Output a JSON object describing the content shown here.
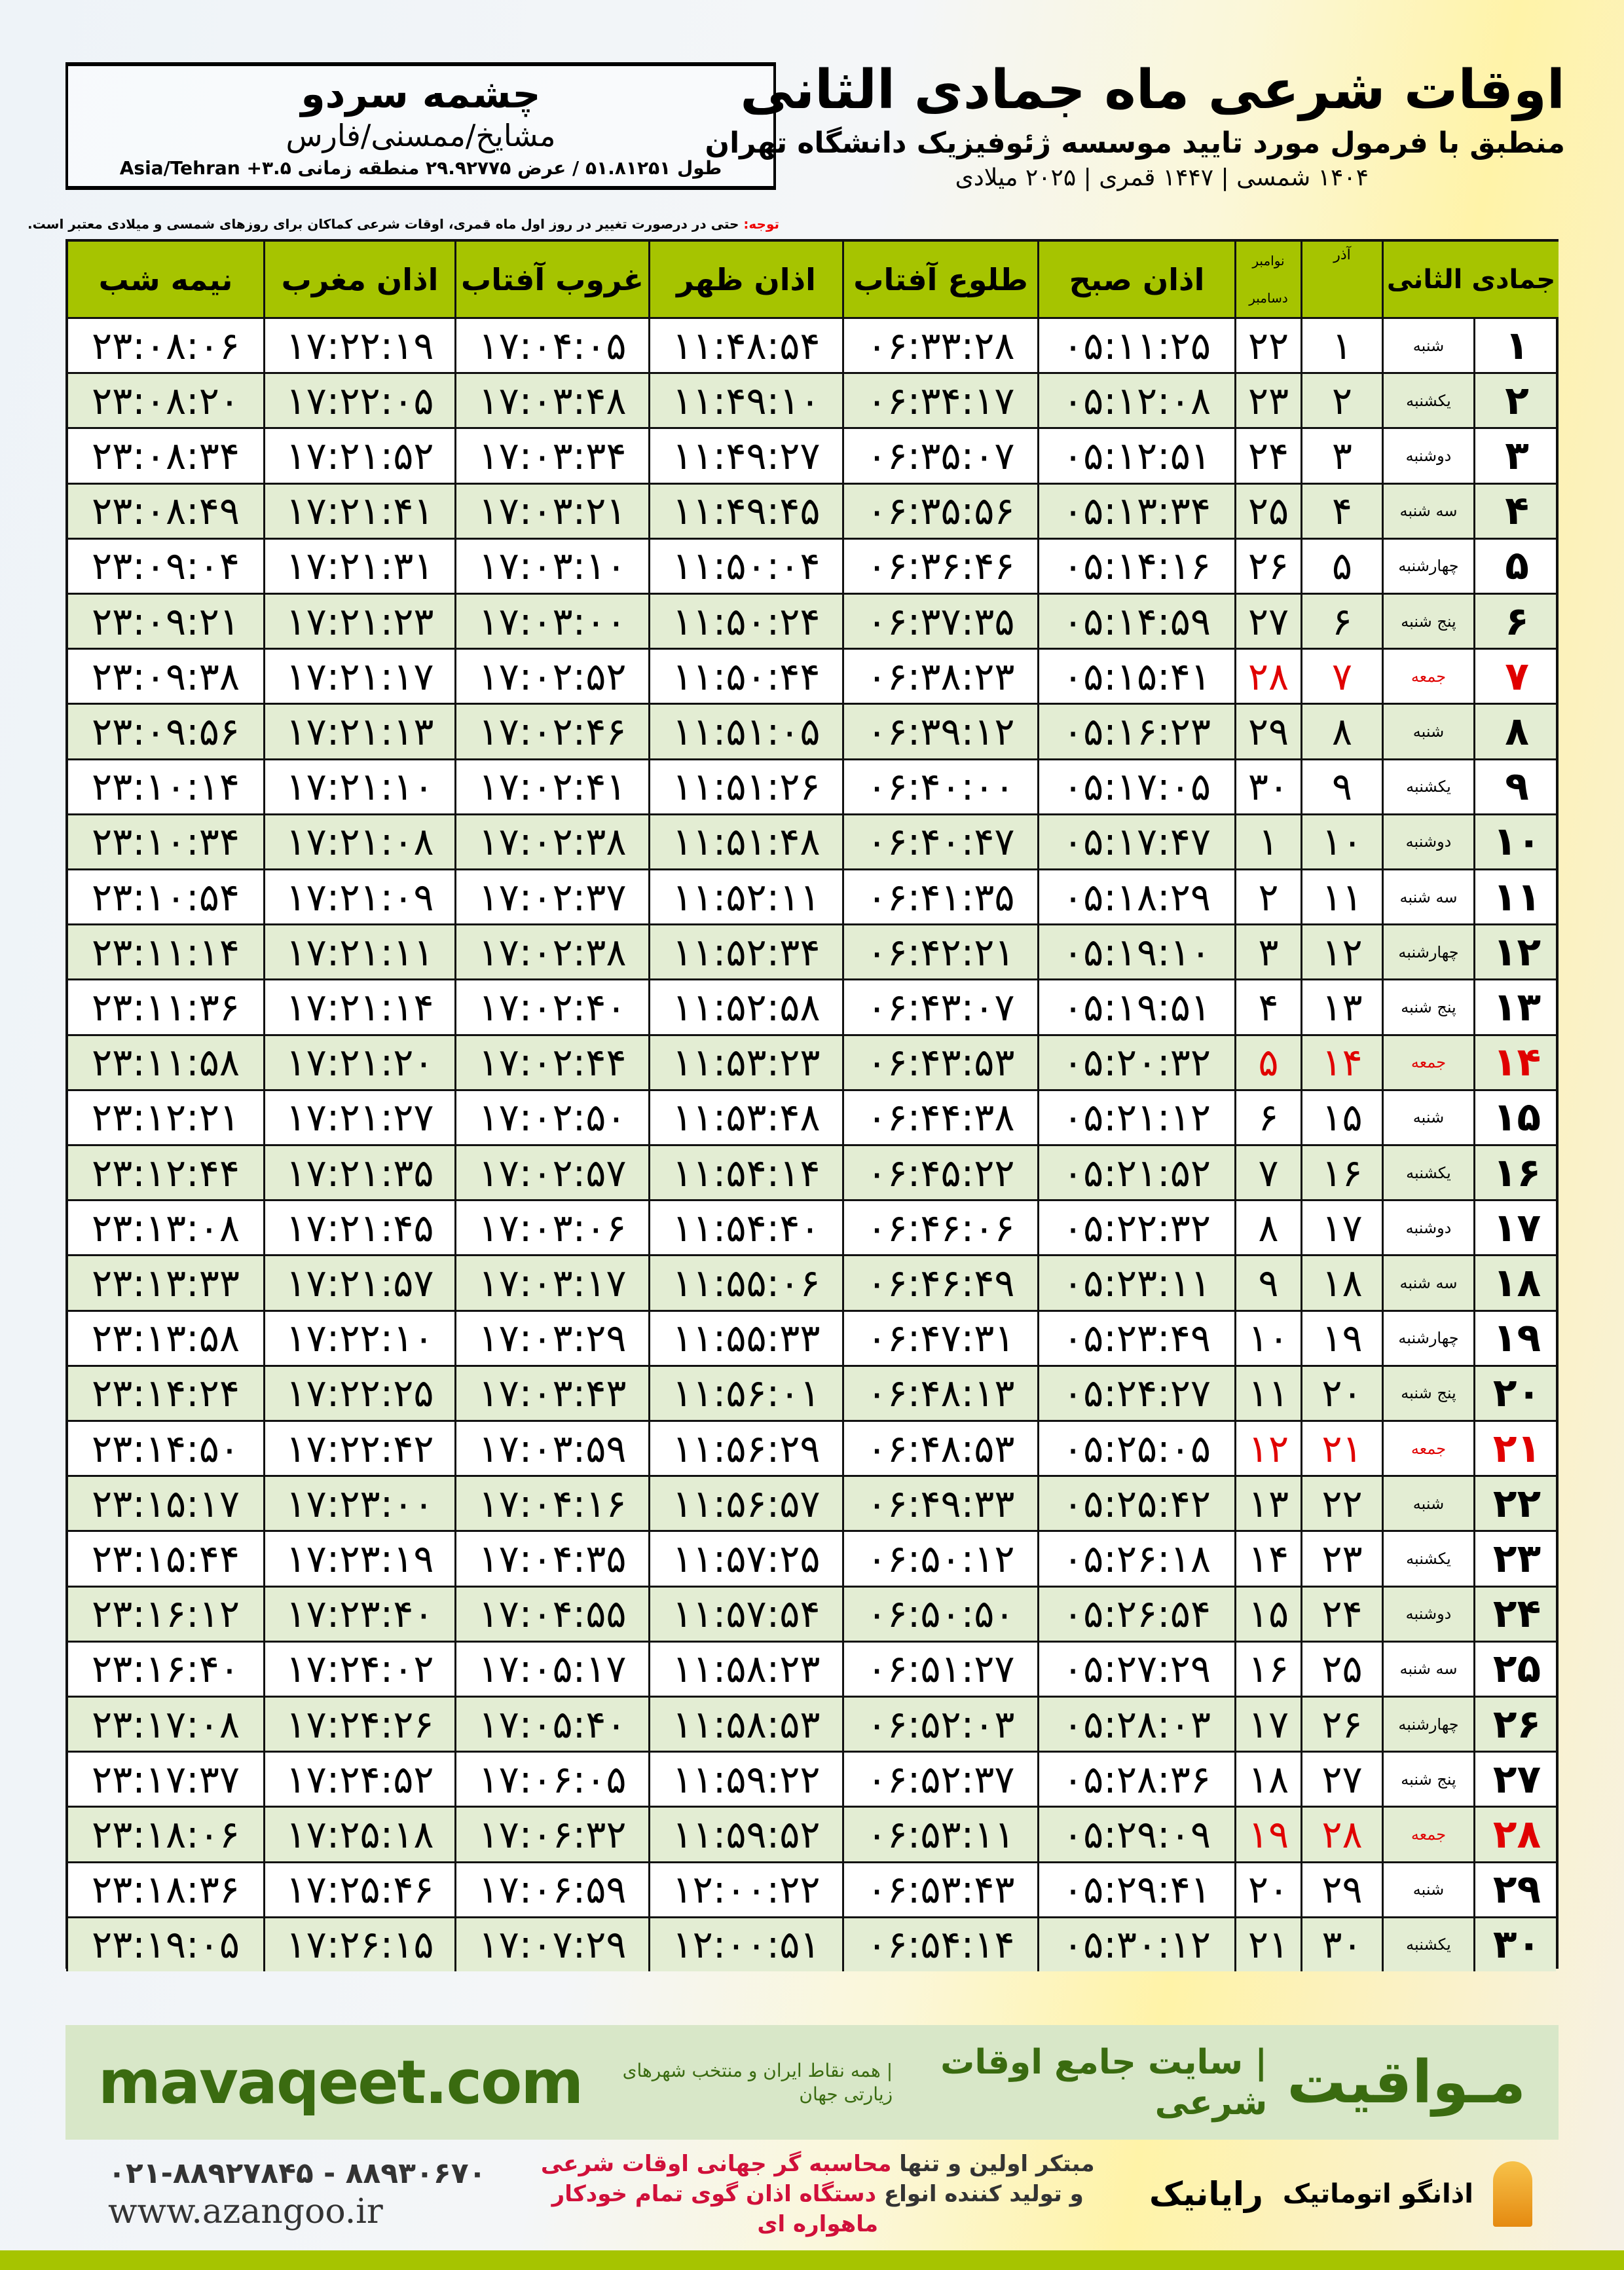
{
  "location": {
    "name": "چشمه سردو",
    "region": "مشایخ/ممسنی/فارس",
    "coords": "طول ۵۱.۸۱۲۵۱ / عرض ۲۹.۹۲۷۷۵ منطقه زمانی ۳.۵+ Asia/Tehran"
  },
  "header": {
    "title": "اوقات شرعی ماه جمادی الثانی",
    "subtitle": "منطبق با فرمول مورد تایید موسسه ژئوفیزیک دانشگاه تهران",
    "dates": "۱۴۰۴ شمسی | ۱۴۴۷ قمری | ۲۰۲۵ میلادی"
  },
  "note": {
    "label": "توجه:",
    "text": " حتی در درصورت تغییر در روز اول ماه قمری، اوقات شرعی کماکان برای روزهای شمسی و میلادی معتبر است."
  },
  "table": {
    "columns": {
      "day": "جمادی الثانی",
      "azar": "آذر",
      "greg_top": "نوامبر",
      "greg_bottom": "دسامبر",
      "sobh": "اذان صبح",
      "tolu": "طلوع آفتاب",
      "zohr": "اذان ظهر",
      "ghoroob": "غروب آفتاب",
      "maghrib": "اذان مغرب",
      "nimeh": "نیمه شب"
    },
    "holiday_color": "#e00000",
    "header_color": "#a6c400",
    "stripe_color": "#e3edd3",
    "rows": [
      [
        "۱",
        "شنبه",
        "۱",
        "۲۲",
        "۰۵:۱۱:۲۵",
        "۰۶:۳۳:۲۸",
        "۱۱:۴۸:۵۴",
        "۱۷:۰۴:۰۵",
        "۱۷:۲۲:۱۹",
        "۲۳:۰۸:۰۶",
        false
      ],
      [
        "۲",
        "یکشنبه",
        "۲",
        "۲۳",
        "۰۵:۱۲:۰۸",
        "۰۶:۳۴:۱۷",
        "۱۱:۴۹:۱۰",
        "۱۷:۰۳:۴۸",
        "۱۷:۲۲:۰۵",
        "۲۳:۰۸:۲۰",
        false
      ],
      [
        "۳",
        "دوشنبه",
        "۳",
        "۲۴",
        "۰۵:۱۲:۵۱",
        "۰۶:۳۵:۰۷",
        "۱۱:۴۹:۲۷",
        "۱۷:۰۳:۳۴",
        "۱۷:۲۱:۵۲",
        "۲۳:۰۸:۳۴",
        false
      ],
      [
        "۴",
        "سه شنبه",
        "۴",
        "۲۵",
        "۰۵:۱۳:۳۴",
        "۰۶:۳۵:۵۶",
        "۱۱:۴۹:۴۵",
        "۱۷:۰۳:۲۱",
        "۱۷:۲۱:۴۱",
        "۲۳:۰۸:۴۹",
        false
      ],
      [
        "۵",
        "چهارشنبه",
        "۵",
        "۲۶",
        "۰۵:۱۴:۱۶",
        "۰۶:۳۶:۴۶",
        "۱۱:۵۰:۰۴",
        "۱۷:۰۳:۱۰",
        "۱۷:۲۱:۳۱",
        "۲۳:۰۹:۰۴",
        false
      ],
      [
        "۶",
        "پنج شنبه",
        "۶",
        "۲۷",
        "۰۵:۱۴:۵۹",
        "۰۶:۳۷:۳۵",
        "۱۱:۵۰:۲۴",
        "۱۷:۰۳:۰۰",
        "۱۷:۲۱:۲۳",
        "۲۳:۰۹:۲۱",
        false
      ],
      [
        "۷",
        "جمعه",
        "۷",
        "۲۸",
        "۰۵:۱۵:۴۱",
        "۰۶:۳۸:۲۳",
        "۱۱:۵۰:۴۴",
        "۱۷:۰۲:۵۲",
        "۱۷:۲۱:۱۷",
        "۲۳:۰۹:۳۸",
        true
      ],
      [
        "۸",
        "شنبه",
        "۸",
        "۲۹",
        "۰۵:۱۶:۲۳",
        "۰۶:۳۹:۱۲",
        "۱۱:۵۱:۰۵",
        "۱۷:۰۲:۴۶",
        "۱۷:۲۱:۱۳",
        "۲۳:۰۹:۵۶",
        false
      ],
      [
        "۹",
        "یکشنبه",
        "۹",
        "۳۰",
        "۰۵:۱۷:۰۵",
        "۰۶:۴۰:۰۰",
        "۱۱:۵۱:۲۶",
        "۱۷:۰۲:۴۱",
        "۱۷:۲۱:۱۰",
        "۲۳:۱۰:۱۴",
        false
      ],
      [
        "۱۰",
        "دوشنبه",
        "۱۰",
        "۱",
        "۰۵:۱۷:۴۷",
        "۰۶:۴۰:۴۷",
        "۱۱:۵۱:۴۸",
        "۱۷:۰۲:۳۸",
        "۱۷:۲۱:۰۸",
        "۲۳:۱۰:۳۴",
        false
      ],
      [
        "۱۱",
        "سه شنبه",
        "۱۱",
        "۲",
        "۰۵:۱۸:۲۹",
        "۰۶:۴۱:۳۵",
        "۱۱:۵۲:۱۱",
        "۱۷:۰۲:۳۷",
        "۱۷:۲۱:۰۹",
        "۲۳:۱۰:۵۴",
        false
      ],
      [
        "۱۲",
        "چهارشنبه",
        "۱۲",
        "۳",
        "۰۵:۱۹:۱۰",
        "۰۶:۴۲:۲۱",
        "۱۱:۵۲:۳۴",
        "۱۷:۰۲:۳۸",
        "۱۷:۲۱:۱۱",
        "۲۳:۱۱:۱۴",
        false
      ],
      [
        "۱۳",
        "پنج شنبه",
        "۱۳",
        "۴",
        "۰۵:۱۹:۵۱",
        "۰۶:۴۳:۰۷",
        "۱۱:۵۲:۵۸",
        "۱۷:۰۲:۴۰",
        "۱۷:۲۱:۱۴",
        "۲۳:۱۱:۳۶",
        false
      ],
      [
        "۱۴",
        "جمعه",
        "۱۴",
        "۵",
        "۰۵:۲۰:۳۲",
        "۰۶:۴۳:۵۳",
        "۱۱:۵۳:۲۳",
        "۱۷:۰۲:۴۴",
        "۱۷:۲۱:۲۰",
        "۲۳:۱۱:۵۸",
        true
      ],
      [
        "۱۵",
        "شنبه",
        "۱۵",
        "۶",
        "۰۵:۲۱:۱۲",
        "۰۶:۴۴:۳۸",
        "۱۱:۵۳:۴۸",
        "۱۷:۰۲:۵۰",
        "۱۷:۲۱:۲۷",
        "۲۳:۱۲:۲۱",
        false
      ],
      [
        "۱۶",
        "یکشنبه",
        "۱۶",
        "۷",
        "۰۵:۲۱:۵۲",
        "۰۶:۴۵:۲۲",
        "۱۱:۵۴:۱۴",
        "۱۷:۰۲:۵۷",
        "۱۷:۲۱:۳۵",
        "۲۳:۱۲:۴۴",
        false
      ],
      [
        "۱۷",
        "دوشنبه",
        "۱۷",
        "۸",
        "۰۵:۲۲:۳۲",
        "۰۶:۴۶:۰۶",
        "۱۱:۵۴:۴۰",
        "۱۷:۰۳:۰۶",
        "۱۷:۲۱:۴۵",
        "۲۳:۱۳:۰۸",
        false
      ],
      [
        "۱۸",
        "سه شنبه",
        "۱۸",
        "۹",
        "۰۵:۲۳:۱۱",
        "۰۶:۴۶:۴۹",
        "۱۱:۵۵:۰۶",
        "۱۷:۰۳:۱۷",
        "۱۷:۲۱:۵۷",
        "۲۳:۱۳:۳۳",
        false
      ],
      [
        "۱۹",
        "چهارشنبه",
        "۱۹",
        "۱۰",
        "۰۵:۲۳:۴۹",
        "۰۶:۴۷:۳۱",
        "۱۱:۵۵:۳۳",
        "۱۷:۰۳:۲۹",
        "۱۷:۲۲:۱۰",
        "۲۳:۱۳:۵۸",
        false
      ],
      [
        "۲۰",
        "پنج شنبه",
        "۲۰",
        "۱۱",
        "۰۵:۲۴:۲۷",
        "۰۶:۴۸:۱۳",
        "۱۱:۵۶:۰۱",
        "۱۷:۰۳:۴۳",
        "۱۷:۲۲:۲۵",
        "۲۳:۱۴:۲۴",
        false
      ],
      [
        "۲۱",
        "جمعه",
        "۲۱",
        "۱۲",
        "۰۵:۲۵:۰۵",
        "۰۶:۴۸:۵۳",
        "۱۱:۵۶:۲۹",
        "۱۷:۰۳:۵۹",
        "۱۷:۲۲:۴۲",
        "۲۳:۱۴:۵۰",
        true
      ],
      [
        "۲۲",
        "شنبه",
        "۲۲",
        "۱۳",
        "۰۵:۲۵:۴۲",
        "۰۶:۴۹:۳۳",
        "۱۱:۵۶:۵۷",
        "۱۷:۰۴:۱۶",
        "۱۷:۲۳:۰۰",
        "۲۳:۱۵:۱۷",
        false
      ],
      [
        "۲۳",
        "یکشنبه",
        "۲۳",
        "۱۴",
        "۰۵:۲۶:۱۸",
        "۰۶:۵۰:۱۲",
        "۱۱:۵۷:۲۵",
        "۱۷:۰۴:۳۵",
        "۱۷:۲۳:۱۹",
        "۲۳:۱۵:۴۴",
        false
      ],
      [
        "۲۴",
        "دوشنبه",
        "۲۴",
        "۱۵",
        "۰۵:۲۶:۵۴",
        "۰۶:۵۰:۵۰",
        "۱۱:۵۷:۵۴",
        "۱۷:۰۴:۵۵",
        "۱۷:۲۳:۴۰",
        "۲۳:۱۶:۱۲",
        false
      ],
      [
        "۲۵",
        "سه شنبه",
        "۲۵",
        "۱۶",
        "۰۵:۲۷:۲۹",
        "۰۶:۵۱:۲۷",
        "۱۱:۵۸:۲۳",
        "۱۷:۰۵:۱۷",
        "۱۷:۲۴:۰۲",
        "۲۳:۱۶:۴۰",
        false
      ],
      [
        "۲۶",
        "چهارشنبه",
        "۲۶",
        "۱۷",
        "۰۵:۲۸:۰۳",
        "۰۶:۵۲:۰۳",
        "۱۱:۵۸:۵۳",
        "۱۷:۰۵:۴۰",
        "۱۷:۲۴:۲۶",
        "۲۳:۱۷:۰۸",
        false
      ],
      [
        "۲۷",
        "پنج شنبه",
        "۲۷",
        "۱۸",
        "۰۵:۲۸:۳۶",
        "۰۶:۵۲:۳۷",
        "۱۱:۵۹:۲۲",
        "۱۷:۰۶:۰۵",
        "۱۷:۲۴:۵۲",
        "۲۳:۱۷:۳۷",
        false
      ],
      [
        "۲۸",
        "جمعه",
        "۲۸",
        "۱۹",
        "۰۵:۲۹:۰۹",
        "۰۶:۵۳:۱۱",
        "۱۱:۵۹:۵۲",
        "۱۷:۰۶:۳۲",
        "۱۷:۲۵:۱۸",
        "۲۳:۱۸:۰۶",
        true
      ],
      [
        "۲۹",
        "شنبه",
        "۲۹",
        "۲۰",
        "۰۵:۲۹:۴۱",
        "۰۶:۵۳:۴۳",
        "۱۲:۰۰:۲۲",
        "۱۷:۰۶:۵۹",
        "۱۷:۲۵:۴۶",
        "۲۳:۱۸:۳۶",
        false
      ],
      [
        "۳۰",
        "یکشنبه",
        "۳۰",
        "۲۱",
        "۰۵:۳۰:۱۲",
        "۰۶:۵۴:۱۴",
        "۱۲:۰۰:۵۱",
        "۱۷:۰۷:۲۹",
        "۱۷:۲۶:۱۵",
        "۲۳:۱۹:۰۵",
        false
      ]
    ]
  },
  "banner": {
    "brand": "مـواقیت",
    "slogan": "| سایت جامع اوقات شرعی",
    "sub": "| همه نقاط ایران و منتخب شهرهای زیارتی جهان",
    "site": "mavaqeet.com"
  },
  "footer": {
    "promo1_a": "مبتکر اولین و تنها ",
    "promo1_b": "محاسبه گر جهانی اوقات شرعی",
    "promo2_a": "و تولید کننده انواع ",
    "promo2_b": "دستگاه اذان گوی تمام خودکار ماهواره ای",
    "phone": "۰۲۱-۸۸۹۲۷۸۴۵ - ۸۸۹۳۰۶۷۰",
    "web": "www.azangoo.ir",
    "logo1": "رایانیک",
    "logo2": "اذانگو اتوماتیک"
  }
}
